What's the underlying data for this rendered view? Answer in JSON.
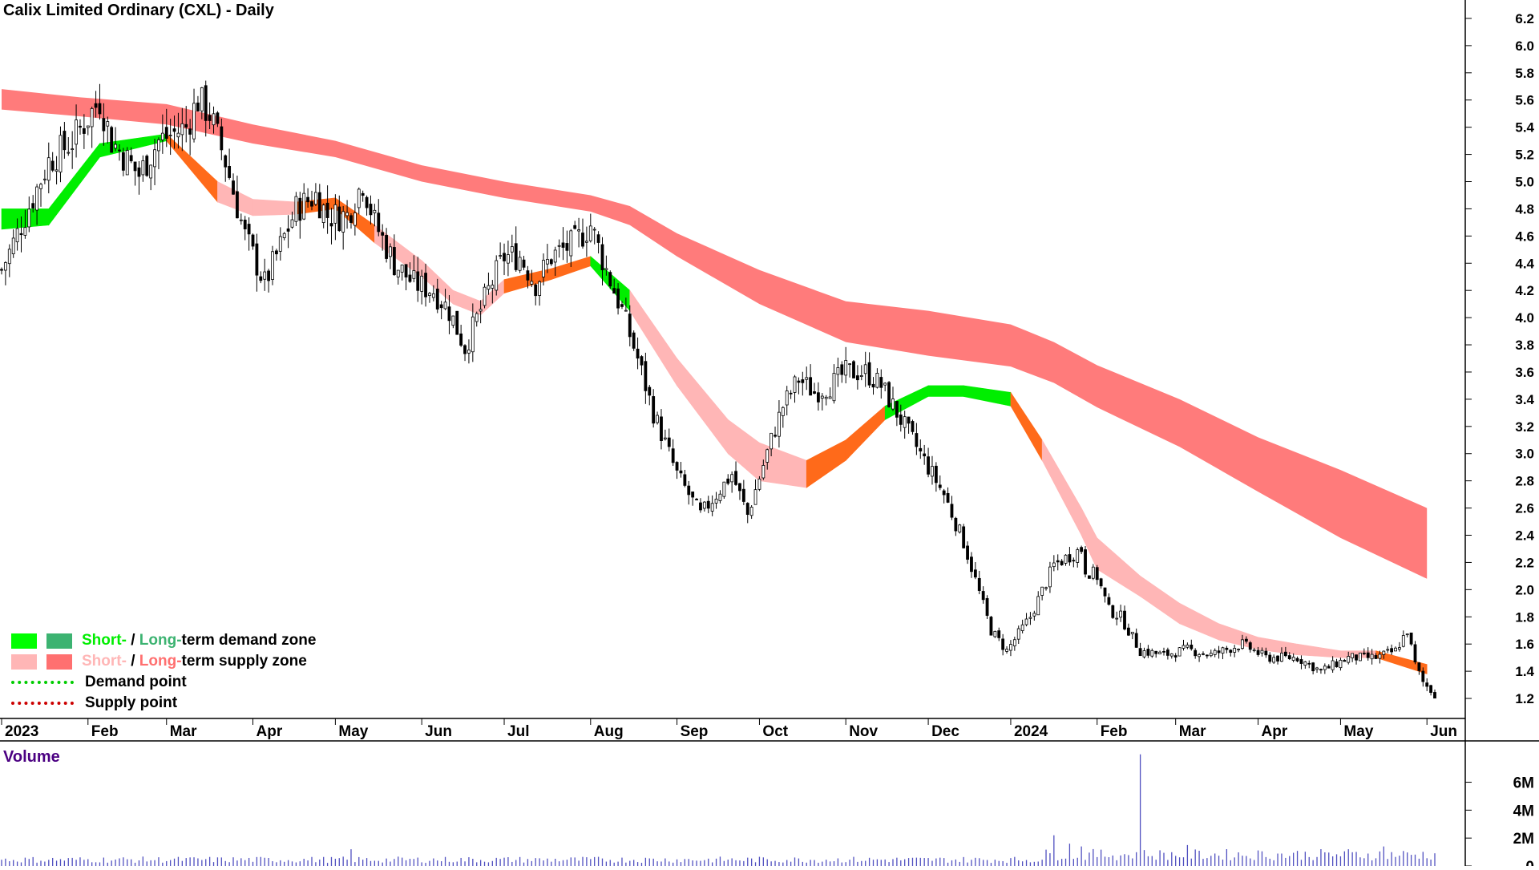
{
  "chart_data": {
    "type": "candlestick",
    "title": "Calix Limited Ordinary (CXL) - Daily",
    "price_axis": {
      "ticks": [
        1.2,
        1.4,
        1.6,
        1.8,
        2.0,
        2.2,
        2.4,
        2.6,
        2.8,
        3.0,
        3.2,
        3.4,
        3.6,
        3.8,
        4.0,
        4.2,
        4.4,
        4.6,
        4.8,
        5.0,
        5.2,
        5.4,
        5.6,
        5.8,
        6.0,
        6.2
      ],
      "range": [
        1.1,
        6.3
      ]
    },
    "x_axis": {
      "labels": [
        "2023",
        "Feb",
        "Mar",
        "Apr",
        "May",
        "Jun",
        "Jul",
        "Aug",
        "Sep",
        "Oct",
        "Nov",
        "Dec",
        "2024",
        "Feb",
        "Mar",
        "Apr",
        "May",
        "Jun"
      ],
      "label_day_index": [
        0,
        22,
        42,
        64,
        85,
        107,
        128,
        150,
        172,
        193,
        215,
        236,
        257,
        279,
        299,
        320,
        341,
        363
      ]
    },
    "total_days": 366,
    "price_path_days": [
      0,
      12,
      18,
      25,
      28,
      35,
      40,
      47,
      50,
      53,
      57,
      62,
      67,
      75,
      80,
      83,
      88,
      92,
      95,
      100,
      105,
      110,
      114,
      118,
      124,
      128,
      132,
      136,
      140,
      146,
      150,
      154,
      158,
      162,
      166,
      172,
      178,
      186,
      190,
      196,
      199,
      203,
      207,
      211,
      215,
      220,
      224,
      230,
      235,
      240,
      245,
      252,
      256,
      262,
      268,
      272,
      275,
      276,
      279,
      282,
      285,
      290,
      296,
      302,
      308,
      316,
      322,
      330,
      336,
      343,
      350,
      355,
      358,
      360,
      362,
      366
    ],
    "price_path_close": [
      4.35,
      5.15,
      5.3,
      5.6,
      5.3,
      5.05,
      5.3,
      5.4,
      5.6,
      5.5,
      5.15,
      4.6,
      4.25,
      4.8,
      4.9,
      4.75,
      4.75,
      5.0,
      4.7,
      4.4,
      4.25,
      4.2,
      4.05,
      3.78,
      4.2,
      4.45,
      4.45,
      4.25,
      4.45,
      4.55,
      4.68,
      4.35,
      4.05,
      3.7,
      3.3,
      2.85,
      2.55,
      2.85,
      2.55,
      3.1,
      3.35,
      3.55,
      3.45,
      3.5,
      3.6,
      3.6,
      3.5,
      3.2,
      2.95,
      2.7,
      2.35,
      1.7,
      1.55,
      1.8,
      2.18,
      2.25,
      2.3,
      2.15,
      2.1,
      1.85,
      1.8,
      1.55,
      1.52,
      1.56,
      1.52,
      1.6,
      1.5,
      1.5,
      1.4,
      1.5,
      1.5,
      1.55,
      1.7,
      1.45,
      1.32,
      1.2
    ],
    "short_term_zone": {
      "days": [
        0,
        12,
        25,
        42,
        55,
        64,
        75,
        85,
        95,
        107,
        115,
        122,
        128,
        140,
        150,
        160,
        172,
        185,
        193,
        205,
        215,
        225,
        236,
        245,
        257,
        265,
        275,
        279,
        290,
        300,
        310,
        320,
        330,
        341,
        350,
        363
      ],
      "top": [
        4.8,
        4.8,
        5.28,
        5.35,
        5.0,
        4.87,
        4.85,
        4.88,
        4.68,
        4.42,
        4.2,
        4.12,
        4.28,
        4.36,
        4.45,
        4.2,
        3.7,
        3.25,
        3.08,
        2.95,
        3.1,
        3.35,
        3.5,
        3.5,
        3.45,
        3.1,
        2.6,
        2.38,
        2.1,
        1.9,
        1.75,
        1.65,
        1.6,
        1.55,
        1.55,
        1.45
      ],
      "bottom": [
        4.65,
        4.68,
        5.18,
        5.3,
        4.85,
        4.75,
        4.76,
        4.8,
        4.55,
        4.3,
        4.1,
        4.02,
        4.18,
        4.28,
        4.38,
        4.05,
        3.5,
        3.0,
        2.8,
        2.75,
        2.95,
        3.25,
        3.42,
        3.42,
        3.35,
        2.95,
        2.4,
        2.15,
        1.95,
        1.75,
        1.63,
        1.56,
        1.52,
        1.5,
        1.5,
        1.38
      ],
      "color_flags": [
        "green",
        "green",
        "green",
        "orange",
        "pink",
        "pink",
        "orange",
        "orange",
        "pink",
        "pink",
        "pink",
        "pink",
        "orange",
        "orange",
        "green",
        "pink",
        "pink",
        "pink",
        "pink",
        "orange",
        "orange",
        "green",
        "green",
        "green",
        "orange",
        "pink",
        "pink",
        "pink",
        "pink",
        "pink",
        "pink",
        "pink",
        "pink",
        "pink",
        "orange",
        "pink"
      ]
    },
    "long_term_zone": {
      "days": [
        0,
        20,
        42,
        64,
        85,
        107,
        128,
        150,
        160,
        172,
        193,
        215,
        236,
        257,
        268,
        279,
        300,
        320,
        341,
        363
      ],
      "top": [
        5.68,
        5.62,
        5.57,
        5.42,
        5.3,
        5.12,
        5.0,
        4.9,
        4.82,
        4.62,
        4.35,
        4.12,
        4.05,
        3.95,
        3.82,
        3.65,
        3.4,
        3.12,
        2.88,
        2.6
      ],
      "bottom": [
        5.53,
        5.48,
        5.42,
        5.28,
        5.18,
        5.0,
        4.88,
        4.78,
        4.68,
        4.45,
        4.1,
        3.82,
        3.72,
        3.64,
        3.52,
        3.34,
        3.05,
        2.72,
        2.38,
        2.08
      ]
    },
    "volume": {
      "title": "Volume",
      "axis_ticks": [
        "0",
        "2M",
        "4M",
        "6M"
      ],
      "axis_values": [
        0,
        2,
        4,
        6
      ],
      "unit": "M",
      "range": [
        0,
        8.5
      ],
      "baseline_millions": 0.45,
      "spikes": [
        {
          "day": 89,
          "value": 1.2
        },
        {
          "day": 268,
          "value": 2.2
        },
        {
          "day": 272,
          "value": 1.6
        },
        {
          "day": 275,
          "value": 1.4
        },
        {
          "day": 290,
          "value": 8.0
        },
        {
          "day": 302,
          "value": 1.5
        },
        {
          "day": 343,
          "value": 1.2
        },
        {
          "day": 352,
          "value": 1.4
        }
      ]
    },
    "legend": [
      {
        "type": "zone",
        "colors": [
          "#00ff00",
          "#3cb371"
        ],
        "parts": [
          {
            "text": "Short-",
            "color": "#00ee00"
          },
          {
            "text": " / ",
            "color": "#000000"
          },
          {
            "text": "Long-",
            "color": "#3cb371"
          },
          {
            "text": "term demand zone",
            "color": "#000000"
          }
        ]
      },
      {
        "type": "zone",
        "colors": [
          "#ffb6b6",
          "#ff7070"
        ],
        "parts": [
          {
            "text": "Short-",
            "color": "#ffb6b6"
          },
          {
            "text": " / ",
            "color": "#000000"
          },
          {
            "text": "Long-",
            "color": "#ff7070"
          },
          {
            "text": "term supply zone",
            "color": "#000000"
          }
        ]
      },
      {
        "type": "dots",
        "color": "#00cc00",
        "text": "Demand point"
      },
      {
        "type": "dots",
        "color": "#cc0000",
        "text": "Supply point"
      }
    ],
    "colors": {
      "long_supply": "#ff7b7b",
      "short_supply": "#ffb6b6",
      "short_demand": "#00ee00",
      "transition": "#ff6a1a",
      "candle": "#000000",
      "volume_bar": "#5050c0",
      "volume_title": "#4b0082"
    }
  }
}
